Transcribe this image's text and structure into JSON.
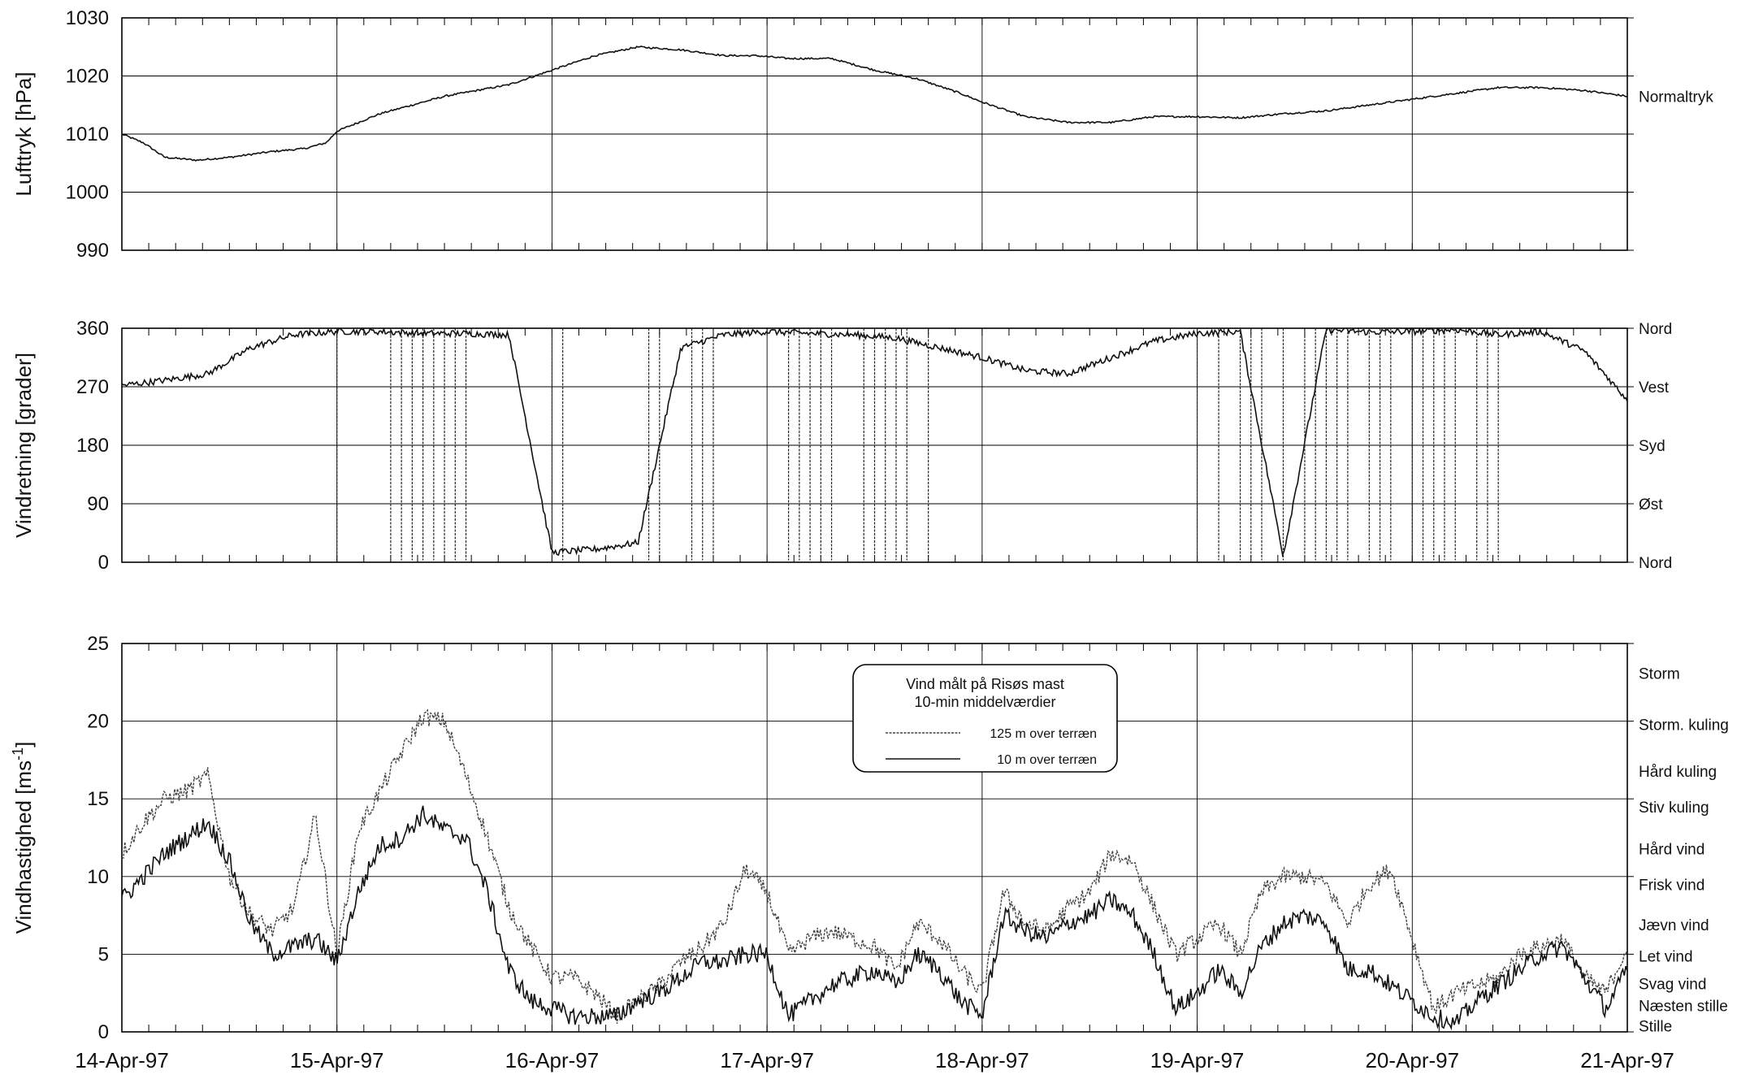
{
  "chart_data": [
    {
      "type": "line",
      "ylabel": "Lufttryk [hPa]",
      "ylim": [
        990,
        1030
      ],
      "yticks": [
        990,
        1000,
        1010,
        1020,
        1030
      ],
      "grid": true,
      "right_labels": [
        {
          "y": 1016.5,
          "text": "Normaltryk"
        }
      ],
      "x": [
        0.0,
        0.1,
        0.2,
        0.35,
        0.5,
        0.7,
        0.85,
        0.95,
        1.0,
        1.2,
        1.5,
        1.8,
        2.0,
        2.2,
        2.4,
        2.6,
        2.8,
        2.95,
        3.1,
        3.3,
        3.5,
        3.7,
        3.9,
        4.0,
        4.2,
        4.4,
        4.6,
        4.8,
        5.0,
        5.2,
        5.4,
        5.6,
        5.8,
        6.0,
        6.2,
        6.4,
        6.6,
        6.8,
        7.0
      ],
      "series": [
        {
          "values": [
            1010,
            1008.5,
            1006,
            1005.5,
            1006,
            1007,
            1007.5,
            1008.5,
            1010.5,
            1013.5,
            1016.5,
            1018.5,
            1021,
            1023.5,
            1025,
            1024.5,
            1023.5,
            1023.5,
            1023,
            1023,
            1021,
            1019.5,
            1017,
            1015.5,
            1013,
            1012,
            1012,
            1013,
            1013,
            1012.8,
            1013.5,
            1014,
            1015,
            1016,
            1017,
            1018,
            1018,
            1017.5,
            1016.5
          ]
        }
      ]
    },
    {
      "type": "line",
      "ylabel": "Vindretning [grader]",
      "ylim": [
        0,
        360
      ],
      "yticks": [
        0,
        90,
        180,
        270,
        360
      ],
      "grid": true,
      "right_labels": [
        {
          "y": 360,
          "text": "Nord"
        },
        {
          "y": 270,
          "text": "Vest"
        },
        {
          "y": 180,
          "text": "Syd"
        },
        {
          "y": 90,
          "text": "Øst"
        },
        {
          "y": 0,
          "text": "Nord"
        }
      ],
      "x": [
        0.0,
        0.2,
        0.4,
        0.6,
        0.8,
        1.0,
        1.2,
        1.4,
        1.6,
        1.8,
        2.0,
        2.2,
        2.4,
        2.6,
        2.8,
        3.0,
        3.2,
        3.4,
        3.6,
        3.8,
        4.0,
        4.2,
        4.4,
        4.6,
        4.8,
        5.0,
        5.2,
        5.4,
        5.6,
        5.8,
        6.0,
        6.2,
        6.4,
        6.6,
        6.8,
        7.0
      ],
      "series": [
        {
          "values": [
            272,
            280,
            290,
            330,
            350,
            355,
            355,
            352,
            352,
            350,
            15,
            20,
            30,
            330,
            350,
            355,
            352,
            350,
            345,
            330,
            315,
            295,
            290,
            315,
            340,
            352,
            355,
            10,
            358,
            354,
            355,
            358,
            350,
            355,
            325,
            250
          ]
        }
      ]
    },
    {
      "type": "line",
      "ylabel": "Vindhastighed [ms-1]",
      "ylabel_superscript": "-1",
      "ylim": [
        0,
        25
      ],
      "yticks": [
        0,
        5,
        10,
        15,
        20,
        25
      ],
      "grid": true,
      "x_tick_labels": [
        "14-Apr-97",
        "15-Apr-97",
        "16-Apr-97",
        "17-Apr-97",
        "18-Apr-97",
        "19-Apr-97",
        "20-Apr-97",
        "21-Apr-97"
      ],
      "right_labels": [
        {
          "y": 23.1,
          "text": "Storm"
        },
        {
          "y": 19.8,
          "text": "Storm. kuling"
        },
        {
          "y": 16.8,
          "text": "Hård kuling"
        },
        {
          "y": 14.5,
          "text": "Stiv kuling"
        },
        {
          "y": 11.8,
          "text": "Hård vind"
        },
        {
          "y": 9.5,
          "text": "Frisk vind"
        },
        {
          "y": 6.9,
          "text": "Jævn vind"
        },
        {
          "y": 4.9,
          "text": "Let vind"
        },
        {
          "y": 3.1,
          "text": "Svag vind"
        },
        {
          "y": 1.7,
          "text": "Næsten stille"
        },
        {
          "y": 0.4,
          "text": "Stille"
        }
      ],
      "legend_title": "Vind målt på Risøs mast",
      "legend_subtitle": "10-min middelværdier",
      "legend_position": "top-center",
      "x": [
        0.0,
        0.1,
        0.2,
        0.3,
        0.4,
        0.5,
        0.6,
        0.7,
        0.8,
        0.9,
        1.0,
        1.1,
        1.2,
        1.3,
        1.4,
        1.5,
        1.6,
        1.7,
        1.8,
        1.9,
        2.0,
        2.1,
        2.2,
        2.3,
        2.4,
        2.5,
        2.6,
        2.7,
        2.8,
        2.9,
        3.0,
        3.1,
        3.2,
        3.3,
        3.4,
        3.5,
        3.6,
        3.7,
        3.8,
        3.9,
        4.0,
        4.1,
        4.2,
        4.3,
        4.4,
        4.5,
        4.6,
        4.7,
        4.8,
        4.9,
        5.0,
        5.1,
        5.2,
        5.3,
        5.4,
        5.5,
        5.6,
        5.7,
        5.8,
        5.9,
        6.0,
        6.1,
        6.2,
        6.3,
        6.4,
        6.5,
        6.6,
        6.7,
        6.8,
        6.9,
        7.0
      ],
      "series": [
        {
          "name": "125 m over terræn",
          "values": [
            11.5,
            13.5,
            15,
            15.5,
            16.5,
            10,
            7.5,
            6.5,
            8,
            14,
            5,
            13,
            15.5,
            18,
            20.3,
            20,
            16.5,
            12.5,
            8,
            5.5,
            3.5,
            3.5,
            2.5,
            1,
            2,
            3,
            4.5,
            5.5,
            7,
            10.5,
            9,
            5,
            6,
            6.5,
            6,
            5.5,
            4,
            7,
            6,
            4,
            2.5,
            9,
            7,
            6.5,
            8,
            9,
            11.5,
            11,
            8,
            5,
            6,
            7,
            5,
            9,
            10,
            10,
            9.5,
            7,
            9.5,
            10.5,
            6,
            1.5,
            2.5,
            3,
            3.5,
            5,
            5.5,
            6,
            3.5,
            2.5,
            5.5
          ]
        },
        {
          "name": "10 m over terræn",
          "values": [
            8.5,
            10,
            11.5,
            12.5,
            13.5,
            11,
            7,
            5,
            5.5,
            6,
            4.5,
            9,
            12,
            12.5,
            14,
            13,
            12.5,
            9,
            4,
            2,
            1.5,
            1,
            1,
            1,
            2,
            2.5,
            3.5,
            4.5,
            4.5,
            5,
            5,
            1,
            2,
            3,
            3.5,
            4,
            3,
            5,
            4,
            2,
            1,
            7.5,
            6.5,
            6,
            7,
            7.5,
            8.5,
            7.5,
            5,
            1.5,
            2.5,
            4,
            2.5,
            5.5,
            7,
            7.5,
            7,
            4,
            4,
            3,
            2,
            1,
            0.5,
            2,
            3,
            4,
            5,
            5.5,
            3.5,
            1.5,
            4
          ]
        }
      ]
    }
  ]
}
